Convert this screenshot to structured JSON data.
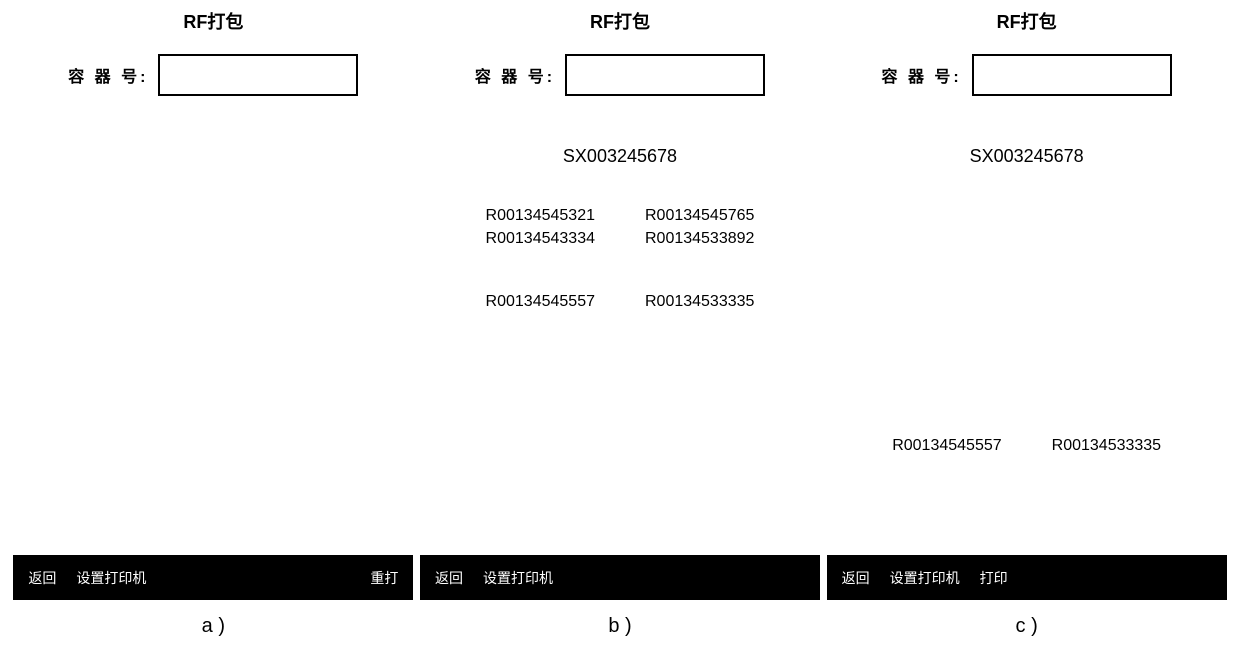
{
  "panels": {
    "a": {
      "title": "RF打包",
      "input_label": "容 器 号:",
      "bottom": {
        "back": "返回",
        "set_printer": "设置打印机",
        "right_action": "重打"
      },
      "caption": "a )"
    },
    "b": {
      "title": "RF打包",
      "input_label": "容 器 号:",
      "main_code": "SX003245678",
      "codes_top": {
        "left1": "R00134545321",
        "left2": "R00134543334",
        "right1": "R00134545765",
        "right2": "R00134533892"
      },
      "codes_bottom": {
        "left": "R00134545557",
        "right": "R00134533335"
      },
      "bottom": {
        "back": "返回",
        "set_printer": "设置打印机"
      },
      "caption": "b )"
    },
    "c": {
      "title": "RF打包",
      "input_label": "容 器 号:",
      "main_code": "SX003245678",
      "codes_bottom": {
        "left": "R00134545557",
        "right": "R00134533335"
      },
      "bottom": {
        "back": "返回",
        "set_printer": "设置打印机",
        "print": "打印"
      },
      "caption": "c )"
    }
  },
  "colors": {
    "bg": "#ffffff",
    "text": "#000000",
    "bar_bg": "#000000",
    "bar_text": "#ffffff",
    "border": "#000000"
  }
}
